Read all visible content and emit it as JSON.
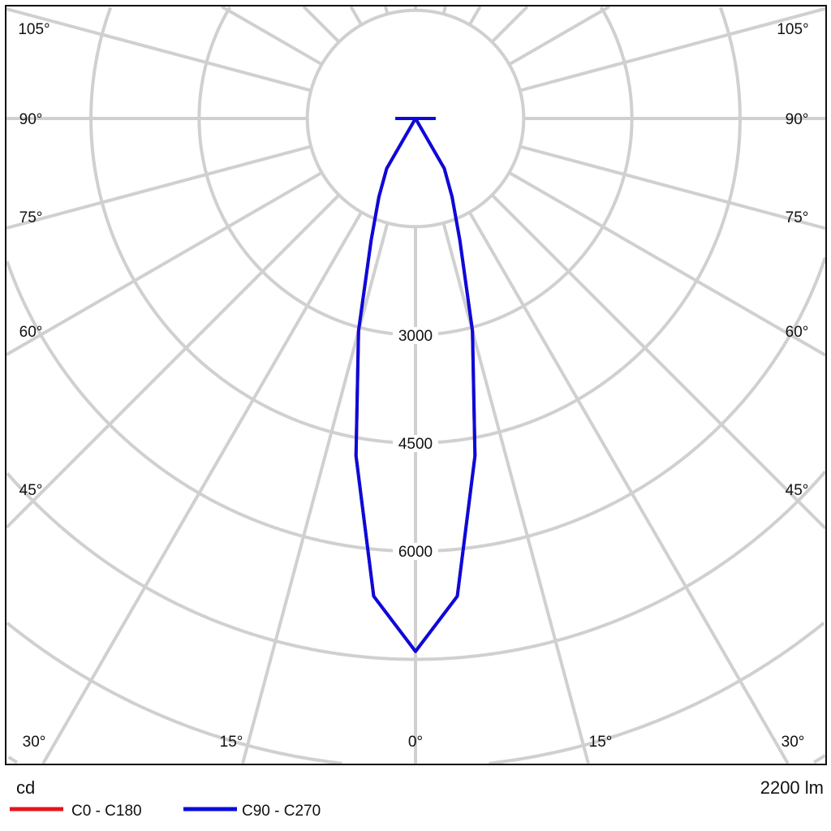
{
  "chart_data": {
    "type": "polar",
    "unit_label": "cd",
    "flux_label": "2200 lm",
    "radial_ticks": [
      1500,
      3000,
      4500,
      6000,
      7500,
      9000,
      10500,
      12000
    ],
    "radial_tick_labels": [
      "3000",
      "4500",
      "6000"
    ],
    "angle_labels_left": [
      "105°",
      "90°",
      "75°",
      "60°",
      "45°",
      "30°"
    ],
    "angle_labels_bottom": [
      "15°",
      "0°",
      "15°"
    ],
    "angle_labels_right": [
      "105°",
      "90°",
      "75°",
      "60°",
      "45°",
      "30°"
    ],
    "grid": true,
    "legend_position": "bottom-left",
    "gamma": [
      0,
      5,
      10,
      15,
      20,
      25,
      30,
      35,
      40,
      45,
      50,
      55,
      60,
      65,
      70,
      75,
      80,
      85,
      90
    ],
    "series": [
      {
        "name": "C0 - C180",
        "color": "#e8141c",
        "values": [
          7390,
          6650,
          4750,
          3050,
          1800,
          1200,
          800,
          0,
          0,
          0,
          0,
          0,
          0,
          0,
          0,
          0,
          0,
          0,
          280
        ]
      },
      {
        "name": "C90 - C270",
        "color": "#0a0adc",
        "values": [
          7390,
          6650,
          4750,
          3050,
          1800,
          1200,
          800,
          0,
          0,
          0,
          0,
          0,
          0,
          0,
          0,
          0,
          0,
          0,
          280
        ]
      }
    ]
  }
}
